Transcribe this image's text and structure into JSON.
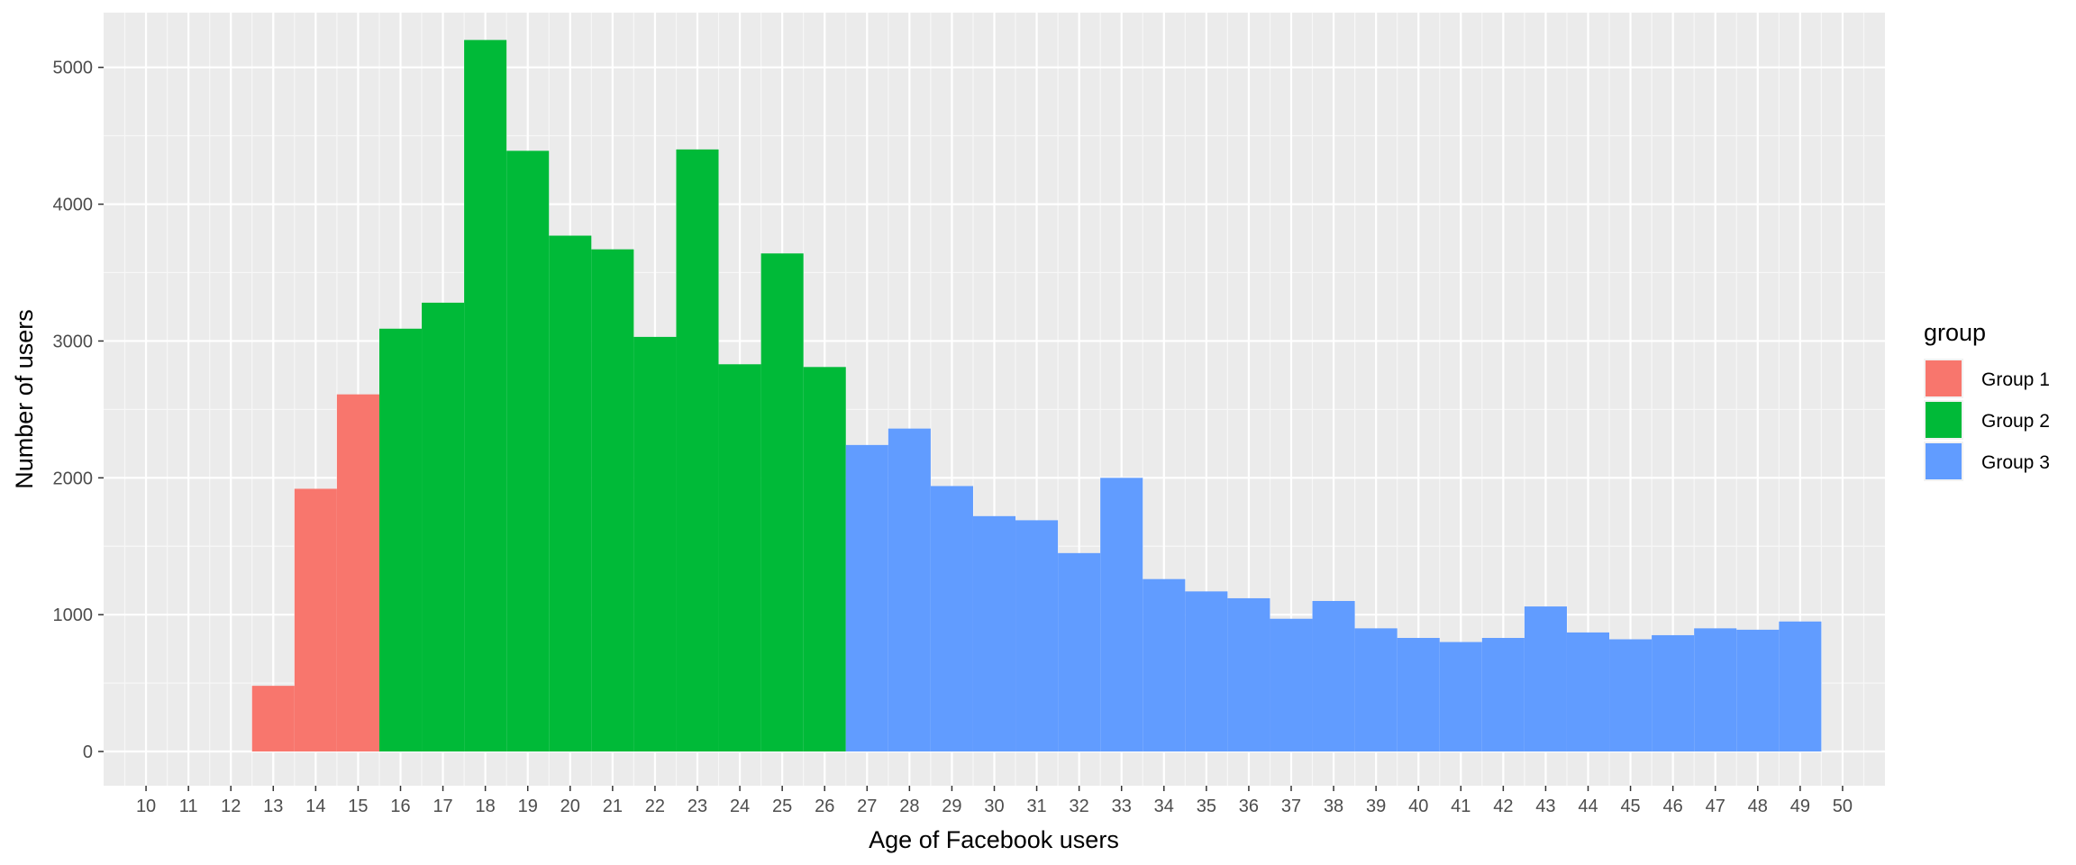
{
  "chart_data": {
    "type": "bar",
    "xlabel": "Age of Facebook users",
    "ylabel": "Number of users",
    "xlim": [
      9,
      51
    ],
    "ylim": [
      -250,
      5400
    ],
    "x_ticks": [
      10,
      11,
      12,
      13,
      14,
      15,
      16,
      17,
      18,
      19,
      20,
      21,
      22,
      23,
      24,
      25,
      26,
      27,
      28,
      29,
      30,
      31,
      32,
      33,
      34,
      35,
      36,
      37,
      38,
      39,
      40,
      41,
      42,
      43,
      44,
      45,
      46,
      47,
      48,
      49,
      50
    ],
    "y_ticks": [
      0,
      1000,
      2000,
      3000,
      4000,
      5000
    ],
    "grid": true,
    "legend": {
      "title": "group",
      "placement": "right",
      "entries": [
        {
          "label": "Group 1",
          "color": "#F8766D"
        },
        {
          "label": "Group 2",
          "color": "#00BA38"
        },
        {
          "label": "Group 3",
          "color": "#619CFF"
        }
      ]
    },
    "series": [
      {
        "name": "Group 1",
        "color": "#F8766D",
        "x": [
          13,
          14,
          15
        ],
        "values": [
          480,
          1920,
          2610
        ]
      },
      {
        "name": "Group 2",
        "color": "#00BA38",
        "x": [
          16,
          17,
          18,
          19,
          20,
          21,
          22,
          23,
          24,
          25,
          26
        ],
        "values": [
          3090,
          3280,
          5200,
          4390,
          3770,
          3670,
          3030,
          4400,
          2830,
          3640,
          2810
        ]
      },
      {
        "name": "Group 3",
        "color": "#619CFF",
        "x": [
          27,
          28,
          29,
          30,
          31,
          32,
          33,
          34,
          35,
          36,
          37,
          38,
          39,
          40,
          41,
          42,
          43,
          44,
          45,
          46,
          47,
          48,
          49
        ],
        "values": [
          2240,
          2360,
          1940,
          1720,
          1690,
          1450,
          2000,
          1260,
          1170,
          1120,
          970,
          1100,
          900,
          830,
          800,
          830,
          1060,
          870,
          820,
          850,
          900,
          890,
          950
        ]
      }
    ]
  }
}
